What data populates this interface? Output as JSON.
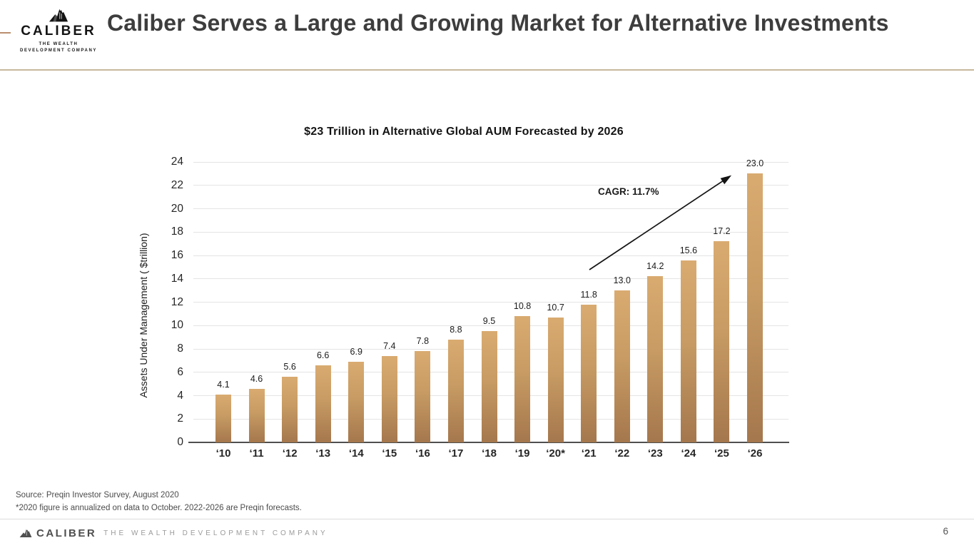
{
  "header": {
    "logo_name": "CALIBER",
    "logo_tagline": "THE WEALTH DEVELOPMENT COMPANY",
    "title": "Caliber Serves a Large and Growing Market for Alternative Investments"
  },
  "chart_data": {
    "type": "bar",
    "title": "$23 Trillion in Alternative Global AUM Forecasted by 2026",
    "xlabel": "",
    "ylabel": "Assets Under Management ( $trillion)",
    "categories": [
      "‘10",
      "‘11",
      "‘12",
      "‘13",
      "‘14",
      "‘15",
      "‘16",
      "‘17",
      "‘18",
      "‘19",
      "‘20*",
      "‘21",
      "‘22",
      "‘23",
      "‘24",
      "‘25",
      "‘26"
    ],
    "values": [
      4.1,
      4.6,
      5.6,
      6.6,
      6.9,
      7.4,
      7.8,
      8.8,
      9.5,
      10.8,
      10.7,
      11.8,
      13.0,
      14.2,
      15.6,
      17.2,
      23.0
    ],
    "ylim": [
      0,
      24
    ],
    "ytick_step": 2,
    "grid": true,
    "legend": "none",
    "annotation": "CAGR: 11.7%",
    "bar_color_top": "#d9ab71",
    "bar_color_bottom": "#a5774d"
  },
  "source": {
    "line1": "Source: Preqin Investor Survey, August 2020",
    "line2": "*2020 figure is annualized on data to October. 2022-2026 are Preqin forecasts."
  },
  "footer": {
    "logo_name": "CALIBER",
    "tagline": "THE WEALTH DEVELOPMENT COMPANY",
    "page_number": "6"
  }
}
